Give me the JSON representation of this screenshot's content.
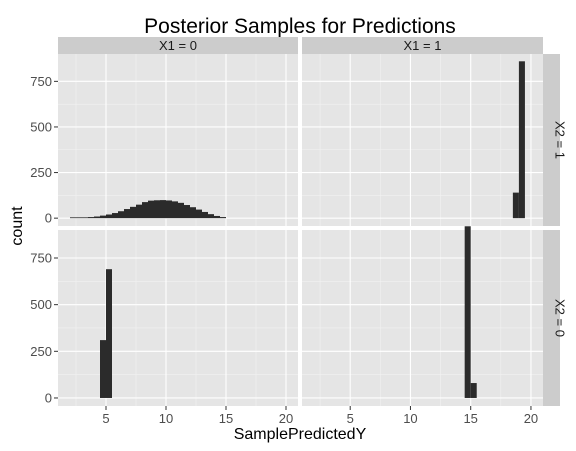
{
  "chart_data": {
    "type": "bar",
    "title": "Posterior Samples for Predictions",
    "xlabel": "SamplePredictedY",
    "ylabel": "count",
    "xlim": [
      1.0,
      21.0
    ],
    "ylim": [
      -43,
      900
    ],
    "x_ticks": [
      5,
      10,
      15,
      20
    ],
    "x_tick_labels": [
      "5",
      "10",
      "15",
      "20"
    ],
    "y_ticks": [
      0,
      250,
      500,
      750
    ],
    "y_tick_labels": [
      "0",
      "250",
      "500",
      "750"
    ],
    "col_strips": [
      "X1 = 0",
      "X1 = 1"
    ],
    "row_strips": [
      "X2 = 1",
      "X2 = 0"
    ],
    "grid": true,
    "colors": {
      "bar": "#2b2b2b",
      "panel": "#e5e5e5",
      "grid_major": "#ffffff",
      "grid_minor": "#f2f2f2",
      "strip": "#cccccc",
      "tick_text": "#4d4d4d",
      "title_text": "#000000"
    },
    "panels": [
      {
        "col": 0,
        "row": 0,
        "bin_width": 0.5,
        "bins": [
          {
            "x": 2.25,
            "count": 1
          },
          {
            "x": 2.75,
            "count": 2
          },
          {
            "x": 3.25,
            "count": 3
          },
          {
            "x": 3.75,
            "count": 6
          },
          {
            "x": 4.25,
            "count": 9
          },
          {
            "x": 4.75,
            "count": 14
          },
          {
            "x": 5.25,
            "count": 20
          },
          {
            "x": 5.75,
            "count": 28
          },
          {
            "x": 6.25,
            "count": 38
          },
          {
            "x": 6.75,
            "count": 50
          },
          {
            "x": 7.25,
            "count": 62
          },
          {
            "x": 7.75,
            "count": 74
          },
          {
            "x": 8.25,
            "count": 88
          },
          {
            "x": 8.75,
            "count": 96
          },
          {
            "x": 9.25,
            "count": 98
          },
          {
            "x": 9.75,
            "count": 99
          },
          {
            "x": 10.25,
            "count": 97
          },
          {
            "x": 10.75,
            "count": 92
          },
          {
            "x": 11.25,
            "count": 84
          },
          {
            "x": 11.75,
            "count": 72
          },
          {
            "x": 12.25,
            "count": 60
          },
          {
            "x": 12.75,
            "count": 47
          },
          {
            "x": 13.25,
            "count": 34
          },
          {
            "x": 13.75,
            "count": 22
          },
          {
            "x": 14.25,
            "count": 12
          },
          {
            "x": 14.75,
            "count": 6
          }
        ]
      },
      {
        "col": 1,
        "row": 0,
        "bin_width": 0.5,
        "bins": [
          {
            "x": 18.75,
            "count": 140
          },
          {
            "x": 19.25,
            "count": 860
          }
        ]
      },
      {
        "col": 0,
        "row": 1,
        "bin_width": 0.5,
        "bins": [
          {
            "x": 4.75,
            "count": 310
          },
          {
            "x": 5.25,
            "count": 690
          }
        ]
      },
      {
        "col": 1,
        "row": 1,
        "bin_width": 0.5,
        "bins": [
          {
            "x": 14.75,
            "count": 920
          },
          {
            "x": 15.25,
            "count": 80
          }
        ]
      }
    ]
  }
}
